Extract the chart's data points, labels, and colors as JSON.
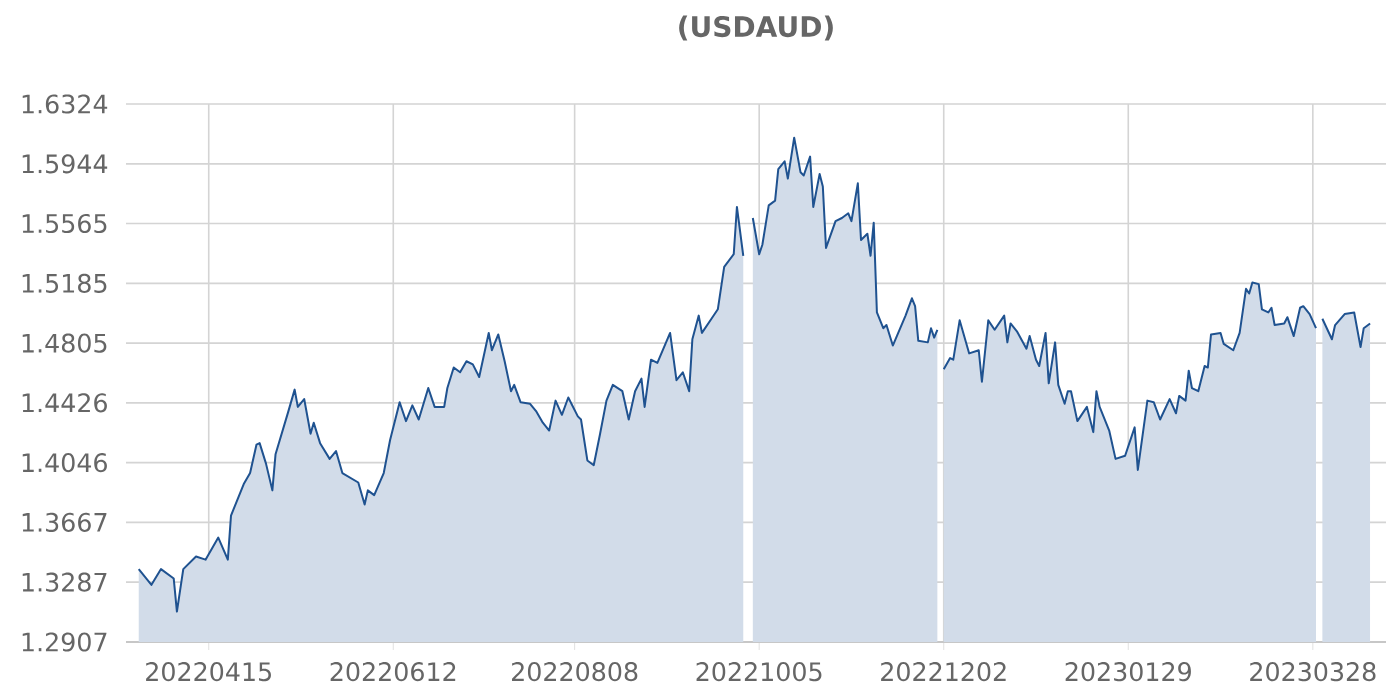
{
  "chart_data": {
    "type": "area",
    "title": "(USDAUD)",
    "x": [
      "2022-03-24",
      "2022-03-28",
      "2022-03-31",
      "2022-04-04",
      "2022-04-05",
      "2022-04-07",
      "2022-04-11",
      "2022-04-14",
      "2022-04-18",
      "2022-04-21",
      "2022-04-22",
      "2022-04-26",
      "2022-04-28",
      "2022-04-30",
      "2022-05-01",
      "2022-05-03",
      "2022-05-05",
      "2022-05-06",
      "2022-05-10",
      "2022-05-12",
      "2022-05-13",
      "2022-05-15",
      "2022-05-17",
      "2022-05-18",
      "2022-05-20",
      "2022-05-23",
      "2022-05-25",
      "2022-05-27",
      "2022-06-01",
      "2022-06-03",
      "2022-06-04",
      "2022-06-06",
      "2022-06-09",
      "2022-06-11",
      "2022-06-14",
      "2022-06-16",
      "2022-06-18",
      "2022-06-20",
      "2022-06-23",
      "2022-06-25",
      "2022-06-28",
      "2022-06-29",
      "2022-07-01",
      "2022-07-03",
      "2022-07-05",
      "2022-07-07",
      "2022-07-09",
      "2022-07-12",
      "2022-07-13",
      "2022-07-15",
      "2022-07-17",
      "2022-07-19",
      "2022-07-20",
      "2022-07-22",
      "2022-07-25",
      "2022-07-27",
      "2022-07-29",
      "2022-07-31",
      "2022-08-02",
      "2022-08-04",
      "2022-08-06",
      "2022-08-09",
      "2022-08-10",
      "2022-08-12",
      "2022-08-14",
      "2022-08-16",
      "2022-08-18",
      "2022-08-20",
      "2022-08-23",
      "2022-08-25",
      "2022-08-27",
      "2022-08-29",
      "2022-08-30",
      "2022-09-01",
      "2022-09-03",
      "2022-09-07",
      "2022-09-09",
      "2022-09-11",
      "2022-09-13",
      "2022-09-14",
      "2022-09-16",
      "2022-09-17",
      "2022-09-20",
      "2022-09-22",
      "2022-09-24",
      "2022-09-27",
      "2022-09-28",
      "2022-09-30",
      "2022-10-02",
      "2022-10-03",
      "2022-10-05",
      "2022-10-06",
      "2022-10-08",
      "2022-10-10",
      "2022-10-11",
      "2022-10-13",
      "2022-10-14",
      "2022-10-16",
      "2022-10-18",
      "2022-10-19",
      "2022-10-21",
      "2022-10-22",
      "2022-10-24",
      "2022-10-25",
      "2022-10-26",
      "2022-10-29",
      "2022-10-31",
      "2022-11-02",
      "2022-11-03",
      "2022-11-05",
      "2022-11-06",
      "2022-11-08",
      "2022-11-09",
      "2022-11-10",
      "2022-11-11",
      "2022-11-13",
      "2022-11-14",
      "2022-11-16",
      "2022-11-20",
      "2022-11-22",
      "2022-11-23",
      "2022-11-24",
      "2022-11-27",
      "2022-11-28",
      "2022-11-29",
      "2022-11-30",
      "2022-12-01",
      "2022-12-02",
      "2022-12-04",
      "2022-12-05",
      "2022-12-07",
      "2022-12-10",
      "2022-12-13",
      "2022-12-14",
      "2022-12-16",
      "2022-12-18",
      "2022-12-21",
      "2022-12-22",
      "2022-12-23",
      "2022-12-25",
      "2022-12-28",
      "2022-12-29",
      "2022-12-31",
      "2023-01-01",
      "2023-01-03",
      "2023-01-04",
      "2023-01-06",
      "2023-01-07",
      "2023-01-09",
      "2023-01-10",
      "2023-01-11",
      "2023-01-13",
      "2023-01-16",
      "2023-01-18",
      "2023-01-19",
      "2023-01-20",
      "2023-01-23",
      "2023-01-25",
      "2023-01-28",
      "2023-01-31",
      "2023-02-01",
      "2023-02-04",
      "2023-02-06",
      "2023-02-08",
      "2023-02-11",
      "2023-02-13",
      "2023-02-14",
      "2023-02-16",
      "2023-02-17",
      "2023-02-18",
      "2023-02-20",
      "2023-02-22",
      "2023-02-23",
      "2023-02-24",
      "2023-02-27",
      "2023-02-28",
      "2023-03-03",
      "2023-03-05",
      "2023-03-07",
      "2023-03-08",
      "2023-03-09",
      "2023-03-11",
      "2023-03-12",
      "2023-03-14",
      "2023-03-15",
      "2023-03-16",
      "2023-03-19",
      "2023-03-20",
      "2023-03-22",
      "2023-03-24",
      "2023-03-25",
      "2023-03-27",
      "2023-03-29",
      "2023-03-30",
      "2023-03-31",
      "2023-04-03",
      "2023-04-04",
      "2023-04-07",
      "2023-04-10",
      "2023-04-12",
      "2023-04-13",
      "2023-04-15"
    ],
    "series": [
      {
        "color": "#1f5290",
        "values": [
          1.337,
          1.327,
          1.337,
          1.331,
          1.31,
          1.337,
          1.345,
          1.343,
          1.357,
          1.343,
          1.371,
          1.391,
          1.398,
          1.416,
          1.417,
          1.404,
          1.387,
          1.41,
          1.437,
          1.451,
          1.44,
          1.445,
          1.423,
          1.43,
          1.417,
          1.407,
          1.412,
          1.398,
          1.392,
          1.378,
          1.387,
          1.384,
          1.398,
          1.419,
          1.443,
          1.431,
          1.441,
          1.432,
          1.452,
          1.44,
          1.44,
          1.452,
          1.465,
          1.462,
          1.469,
          1.467,
          1.459,
          1.487,
          1.476,
          1.486,
          1.469,
          1.45,
          1.454,
          1.443,
          1.442,
          1.437,
          1.43,
          1.425,
          1.444,
          1.435,
          1.446,
          1.434,
          1.432,
          1.406,
          1.403,
          1.423,
          1.444,
          1.454,
          1.45,
          1.432,
          1.45,
          1.458,
          1.44,
          1.47,
          1.468,
          1.487,
          1.457,
          1.462,
          1.45,
          1.483,
          1.498,
          1.487,
          1.496,
          1.502,
          1.529,
          1.537,
          1.567,
          1.536,
          null,
          1.56,
          1.537,
          1.543,
          1.568,
          1.571,
          1.591,
          1.596,
          1.585,
          1.611,
          1.589,
          1.587,
          1.599,
          1.567,
          1.588,
          1.58,
          1.541,
          1.558,
          1.56,
          1.563,
          1.558,
          1.582,
          1.546,
          1.55,
          1.536,
          1.557,
          1.5,
          1.49,
          1.492,
          1.479,
          1.498,
          1.509,
          1.504,
          1.482,
          1.481,
          1.49,
          1.484,
          1.489,
          null,
          1.464,
          1.471,
          1.47,
          1.495,
          1.474,
          1.476,
          1.456,
          1.495,
          1.489,
          1.498,
          1.481,
          1.493,
          1.488,
          1.477,
          1.485,
          1.47,
          1.466,
          1.487,
          1.455,
          1.481,
          1.454,
          1.442,
          1.45,
          1.45,
          1.431,
          1.44,
          1.424,
          1.45,
          1.44,
          1.425,
          1.407,
          1.409,
          1.427,
          1.4,
          1.444,
          1.443,
          1.432,
          1.445,
          1.436,
          1.447,
          1.444,
          1.463,
          1.452,
          1.45,
          1.466,
          1.465,
          1.486,
          1.487,
          1.48,
          1.476,
          1.487,
          1.515,
          1.512,
          1.519,
          1.518,
          1.502,
          1.5,
          1.503,
          1.492,
          1.493,
          1.497,
          1.485,
          1.503,
          1.504,
          1.499,
          1.49,
          null,
          1.496,
          1.483,
          1.492,
          1.499,
          1.5,
          1.478,
          1.49,
          1.493
        ]
      }
    ],
    "xlim": [
      "2022-03-20",
      "2023-04-20"
    ],
    "xticks": [
      {
        "value": "2022-04-15",
        "label": "20220415"
      },
      {
        "value": "2022-06-12",
        "label": "20220612"
      },
      {
        "value": "2022-08-08",
        "label": "20220808"
      },
      {
        "value": "2022-10-05",
        "label": "20221005"
      },
      {
        "value": "2022-12-02",
        "label": "20221202"
      },
      {
        "value": "2023-01-29",
        "label": "20230129"
      },
      {
        "value": "2023-03-28",
        "label": "20230328"
      }
    ],
    "ylim": [
      1.2907,
      1.6324
    ],
    "yticks": [
      1.2907,
      1.3287,
      1.3667,
      1.4046,
      1.4426,
      1.4805,
      1.5185,
      1.5565,
      1.5944,
      1.6324
    ],
    "grid": true
  }
}
